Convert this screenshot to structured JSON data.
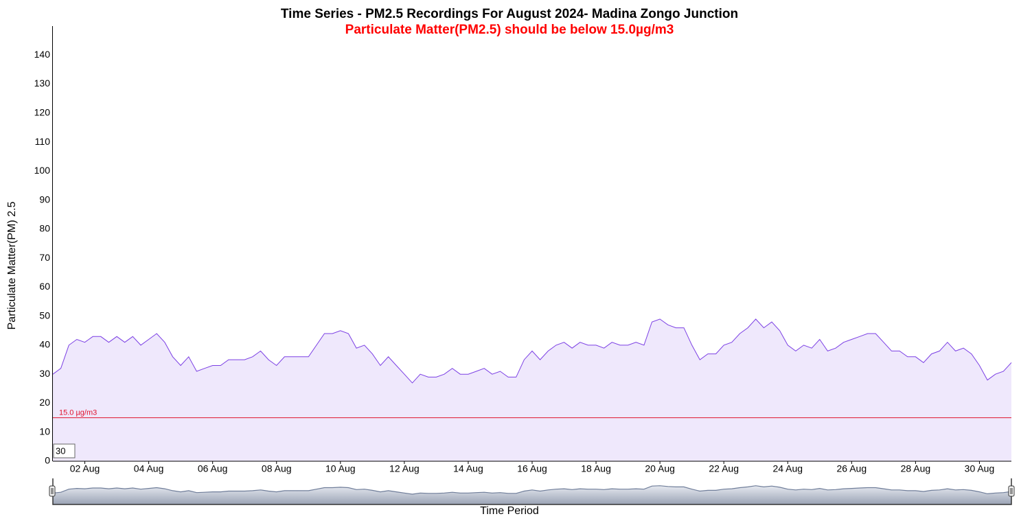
{
  "chart_data": {
    "type": "area",
    "title": "Time Series - PM2.5 Recordings For August 2024- Madina Zongo Junction",
    "subtitle": "Particulate Matter(PM2.5) should be below 15.0µg/m3",
    "x_label": "Time Period",
    "y_label": "Particulate Matter(PM) 2.5",
    "zoom_input": "30",
    "threshold": {
      "value": 15,
      "label": "15.0 µg/m3",
      "color": "#e0112b"
    },
    "xlim": [
      1,
      31
    ],
    "xticks": [
      {
        "value": 2,
        "label": "02 Aug"
      },
      {
        "value": 4,
        "label": "04 Aug"
      },
      {
        "value": 6,
        "label": "06 Aug"
      },
      {
        "value": 8,
        "label": "08 Aug"
      },
      {
        "value": 10,
        "label": "10 Aug"
      },
      {
        "value": 12,
        "label": "12 Aug"
      },
      {
        "value": 14,
        "label": "14 Aug"
      },
      {
        "value": 16,
        "label": "16 Aug"
      },
      {
        "value": 18,
        "label": "18 Aug"
      },
      {
        "value": 20,
        "label": "20 Aug"
      },
      {
        "value": 22,
        "label": "22 Aug"
      },
      {
        "value": 24,
        "label": "24 Aug"
      },
      {
        "value": 26,
        "label": "26 Aug"
      },
      {
        "value": 28,
        "label": "28 Aug"
      },
      {
        "value": 30,
        "label": "30 Aug"
      }
    ],
    "ylim": [
      0,
      150
    ],
    "yticks": [
      0,
      10,
      20,
      30,
      40,
      50,
      60,
      70,
      80,
      90,
      100,
      110,
      120,
      130,
      140
    ],
    "grid": false,
    "x": [
      1,
      1.25,
      1.5,
      1.75,
      2,
      2.25,
      2.5,
      2.75,
      3,
      3.25,
      3.5,
      3.75,
      4,
      4.25,
      4.5,
      4.75,
      5,
      5.25,
      5.5,
      5.75,
      6,
      6.25,
      6.5,
      6.75,
      7,
      7.25,
      7.5,
      7.75,
      8,
      8.25,
      8.5,
      8.75,
      9,
      9.25,
      9.5,
      9.75,
      10,
      10.25,
      10.5,
      10.75,
      11,
      11.25,
      11.5,
      11.75,
      12,
      12.25,
      12.5,
      12.75,
      13,
      13.25,
      13.5,
      13.75,
      14,
      14.25,
      14.5,
      14.75,
      15,
      15.25,
      15.5,
      15.75,
      16,
      16.25,
      16.5,
      16.75,
      17,
      17.25,
      17.5,
      17.75,
      18,
      18.25,
      18.5,
      18.75,
      19,
      19.25,
      19.5,
      19.75,
      20,
      20.25,
      20.5,
      20.75,
      21,
      21.25,
      21.5,
      21.75,
      22,
      22.25,
      22.5,
      22.75,
      23,
      23.25,
      23.5,
      23.75,
      24,
      24.25,
      24.5,
      24.75,
      25,
      25.25,
      25.5,
      25.75,
      26,
      26.25,
      26.5,
      26.75,
      27,
      27.25,
      27.5,
      27.75,
      28,
      28.25,
      28.5,
      28.75,
      29,
      29.25,
      29.5,
      29.75,
      30,
      30.25,
      30.5,
      30.75,
      31
    ],
    "series": [
      {
        "name": "PM2.5",
        "color": "#7b3fe4",
        "fill": "#efe8fc",
        "values": [
          30,
          32,
          40,
          42,
          41,
          43,
          43,
          41,
          43,
          41,
          43,
          40,
          42,
          44,
          41,
          36,
          33,
          36,
          31,
          32,
          33,
          33,
          35,
          35,
          35,
          36,
          38,
          35,
          33,
          36,
          36,
          36,
          36,
          40,
          44,
          44,
          45,
          44,
          39,
          40,
          37,
          33,
          36,
          33,
          30,
          27,
          30,
          29,
          29,
          30,
          32,
          30,
          30,
          31,
          32,
          30,
          31,
          29,
          29,
          35,
          38,
          35,
          38,
          40,
          41,
          39,
          41,
          40,
          40,
          39,
          41,
          40,
          40,
          41,
          40,
          48,
          49,
          47,
          46,
          46,
          40,
          35,
          37,
          37,
          40,
          41,
          44,
          46,
          49,
          46,
          48,
          45,
          40,
          38,
          40,
          39,
          42,
          38,
          39,
          41,
          42,
          43,
          44,
          44,
          41,
          38,
          38,
          36,
          36,
          34,
          37,
          38,
          41,
          38,
          39,
          37,
          33,
          28,
          30,
          31,
          34
        ]
      }
    ]
  }
}
